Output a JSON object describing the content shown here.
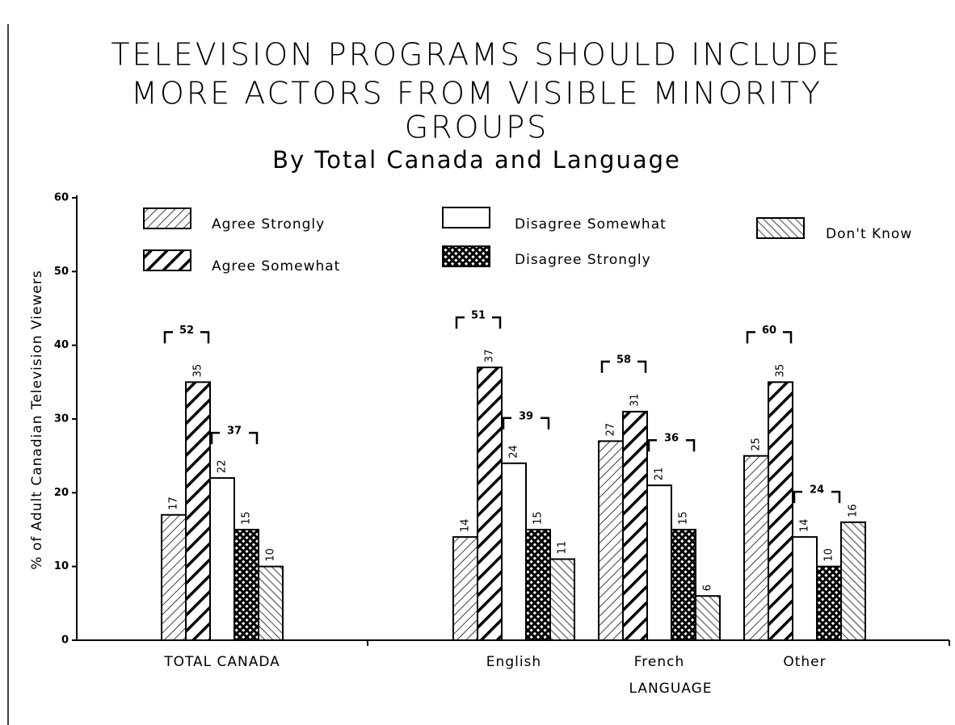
{
  "chart_data": {
    "type": "bar",
    "title_lines": [
      "TELEVISION PROGRAMS SHOULD INCLUDE",
      "MORE ACTORS FROM VISIBLE MINORITY",
      "GROUPS"
    ],
    "subtitle": "By Total Canada and Language",
    "y_label": "% of Adult Canadian Television Viewers",
    "x_group_label": "LANGUAGE",
    "categories": [
      "TOTAL CANADA",
      "English",
      "French",
      "Other"
    ],
    "series": [
      {
        "name": "Agree Strongly",
        "color": "#000",
        "pattern": "thin-diagonal",
        "values": [
          17,
          14,
          27,
          25
        ]
      },
      {
        "name": "Agree Somewhat",
        "color": "#000",
        "pattern": "bold-diagonal",
        "values": [
          35,
          37,
          31,
          35
        ]
      },
      {
        "name": "Disagree Somewhat",
        "color": "#000",
        "pattern": "none",
        "values": [
          22,
          24,
          21,
          14
        ]
      },
      {
        "name": "Disagree Strongly",
        "color": "#000",
        "pattern": "crosshatch",
        "values": [
          15,
          15,
          15,
          10
        ]
      },
      {
        "name": "Don't Know",
        "color": "#000",
        "pattern": "back-diagonal",
        "values": [
          10,
          11,
          6,
          16
        ]
      }
    ],
    "agree_totals": [
      52,
      51,
      58,
      60
    ],
    "disagree_totals": [
      37,
      39,
      36,
      24
    ],
    "ylim": [
      0,
      60
    ],
    "yticks": [
      0,
      10,
      20,
      30,
      40,
      50,
      60
    ]
  }
}
